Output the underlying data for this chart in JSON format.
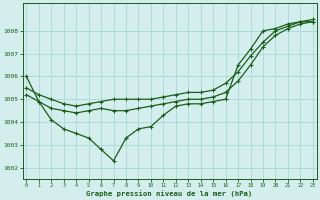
{
  "xlabel": "Graphe pression niveau de la mer (hPa)",
  "bg_color": "#d4eeee",
  "line_color": "#1a5e1a",
  "grid_color": "#a8d8d8",
  "hours": [
    0,
    1,
    2,
    3,
    4,
    5,
    6,
    7,
    8,
    9,
    10,
    11,
    12,
    13,
    14,
    15,
    16,
    17,
    18,
    19,
    20,
    21,
    22,
    23
  ],
  "s1": [
    1006.0,
    1004.9,
    1004.1,
    1003.7,
    1003.5,
    1003.3,
    1002.8,
    1002.3,
    1003.3,
    1003.7,
    1003.8,
    1004.3,
    1004.7,
    1004.8,
    1004.8,
    1004.9,
    1005.0,
    1006.5,
    1007.2,
    1008.0,
    1008.1,
    1008.3,
    1008.4,
    1008.4
  ],
  "s2": [
    1005.2,
    1004.9,
    1004.6,
    1004.5,
    1004.4,
    1004.5,
    1004.6,
    1004.5,
    1004.5,
    1004.6,
    1004.7,
    1004.8,
    1004.9,
    1005.0,
    1005.0,
    1005.1,
    1005.3,
    1005.8,
    1006.5,
    1007.3,
    1007.8,
    1008.1,
    1008.3,
    1008.4
  ],
  "s3": [
    1005.5,
    1005.2,
    1005.0,
    1004.8,
    1004.7,
    1004.8,
    1004.9,
    1005.0,
    1005.0,
    1005.0,
    1005.0,
    1005.1,
    1005.2,
    1005.3,
    1005.3,
    1005.4,
    1005.7,
    1006.2,
    1006.9,
    1007.5,
    1008.0,
    1008.2,
    1008.4,
    1008.5
  ],
  "ylim": [
    1001.5,
    1009.2
  ],
  "yticks": [
    1002,
    1003,
    1004,
    1005,
    1006,
    1007,
    1008
  ],
  "xticks": [
    0,
    1,
    2,
    3,
    4,
    5,
    6,
    7,
    8,
    9,
    10,
    11,
    12,
    13,
    14,
    15,
    16,
    17,
    18,
    19,
    20,
    21,
    22,
    23
  ]
}
